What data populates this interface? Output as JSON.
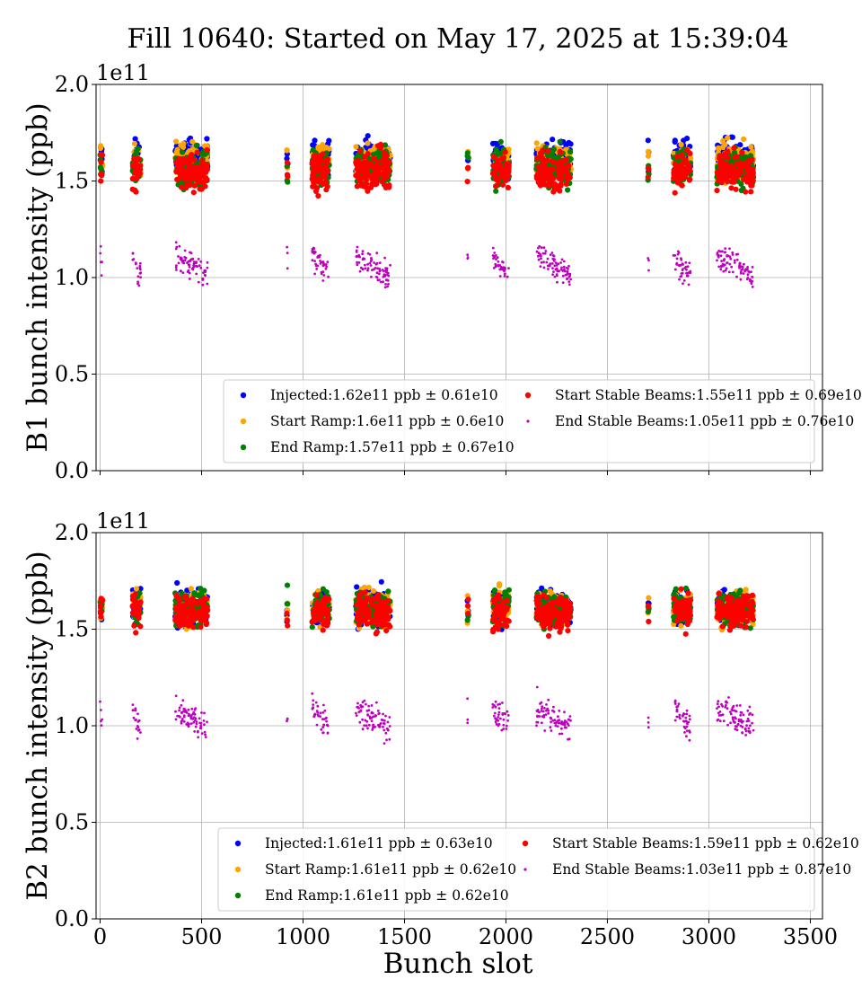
{
  "chart_data": {
    "type": "scatter",
    "title": "Fill 10640: Started on May 17, 2025 at 15:39:04",
    "xlabel": "Bunch slot",
    "xlim": [
      -20,
      3560
    ],
    "xticks": [
      0,
      500,
      1000,
      1500,
      2000,
      2500,
      3000,
      3500
    ],
    "grid": true,
    "colors": {
      "Injected": "#0000ff",
      "Start Ramp": "#ffa500",
      "End Ramp": "#008000",
      "Start Stable Beams": "#ff0000",
      "End Stable Beams": "#bf00bf"
    },
    "trains": [
      {
        "start": 0,
        "end": 12
      },
      {
        "start": 160,
        "end": 200
      },
      {
        "start": 370,
        "end": 530
      },
      {
        "start": 920,
        "end": 925
      },
      {
        "start": 1045,
        "end": 1130
      },
      {
        "start": 1260,
        "end": 1430
      },
      {
        "start": 1810,
        "end": 1815
      },
      {
        "start": 1935,
        "end": 2015
      },
      {
        "start": 2150,
        "end": 2320
      },
      {
        "start": 2700,
        "end": 2705
      },
      {
        "start": 2825,
        "end": 2910
      },
      {
        "start": 3040,
        "end": 3220
      }
    ],
    "panels": [
      {
        "ylabel": "B1 bunch intensity (ppb)",
        "offset": "1e11",
        "ylim": [
          0,
          2.0
        ],
        "yticks": [
          "0.0",
          "0.5",
          "1.0",
          "1.5",
          "2.0"
        ],
        "legend_position": "lower-right",
        "series": [
          {
            "name": "Injected",
            "label": "Injected:1.62e11 ppb ± 0.61e10",
            "mean": 1.62,
            "std": 0.061
          },
          {
            "name": "Start Ramp",
            "label": "Start Ramp:1.6e11 ppb ± 0.6e10",
            "mean": 1.6,
            "std": 0.06
          },
          {
            "name": "End Ramp",
            "label": "End Ramp:1.57e11 ppb ± 0.67e10",
            "mean": 1.57,
            "std": 0.067
          },
          {
            "name": "Start Stable Beams",
            "label": "Start Stable Beams:1.55e11 ppb ± 0.69e10",
            "mean": 1.55,
            "std": 0.069
          },
          {
            "name": "End Stable Beams",
            "label": "End Stable Beams:1.05e11 ppb ± 0.76e10",
            "mean": 1.05,
            "std": 0.076
          }
        ]
      },
      {
        "ylabel": "B2 bunch intensity (ppb)",
        "offset": "1e11",
        "ylim": [
          0,
          2.0
        ],
        "yticks": [
          "0.0",
          "0.5",
          "1.0",
          "1.5",
          "2.0"
        ],
        "legend_position": "lower-right",
        "series": [
          {
            "name": "Injected",
            "label": "Injected:1.61e11 ppb ± 0.63e10",
            "mean": 1.61,
            "std": 0.063
          },
          {
            "name": "Start Ramp",
            "label": "Start Ramp:1.61e11 ppb ± 0.62e10",
            "mean": 1.61,
            "std": 0.062
          },
          {
            "name": "End Ramp",
            "label": "End Ramp:1.61e11 ppb ± 0.62e10",
            "mean": 1.61,
            "std": 0.062
          },
          {
            "name": "Start Stable Beams",
            "label": "Start Stable Beams:1.59e11 ppb ± 0.62e10",
            "mean": 1.59,
            "std": 0.062
          },
          {
            "name": "End Stable Beams",
            "label": "End Stable Beams:1.03e11 ppb ± 0.87e10",
            "mean": 1.03,
            "std": 0.087
          }
        ]
      }
    ]
  }
}
